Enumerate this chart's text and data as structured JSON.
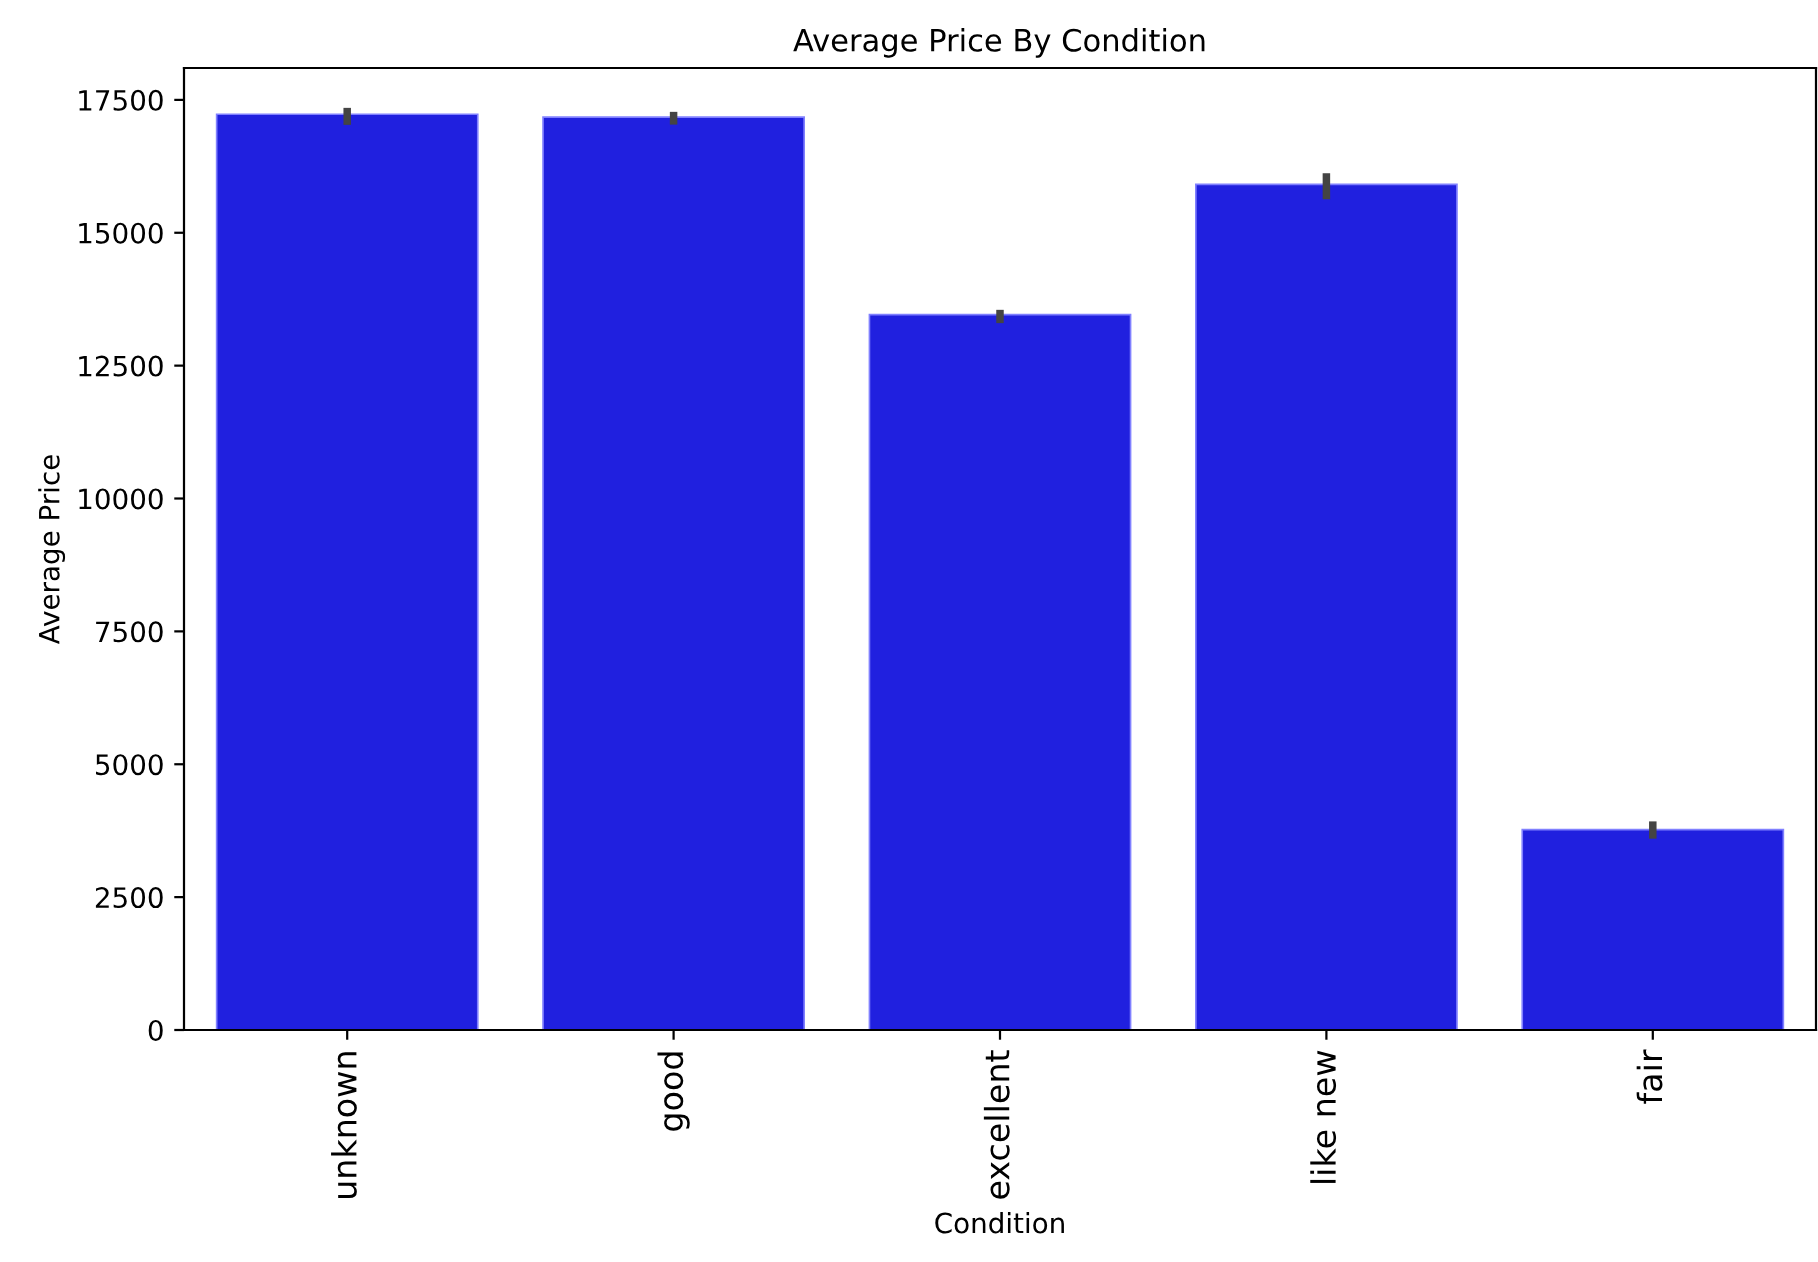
{
  "chart_data": {
    "type": "bar",
    "title": "Average Price By Condition",
    "xlabel": "Condition",
    "ylabel": "Average Price",
    "categories": [
      "unknown",
      "good",
      "excellent",
      "like new",
      "fair"
    ],
    "values": [
      17230,
      17175,
      13460,
      15910,
      3770
    ],
    "errors": [
      [
        17030,
        17350
      ],
      [
        17035,
        17275
      ],
      [
        13300,
        13550
      ],
      [
        15630,
        16120
      ],
      [
        3600,
        3925
      ]
    ],
    "color": "#2020df",
    "ylim": [
      0,
      18100
    ],
    "yticks": [
      0,
      2500,
      5000,
      7500,
      10000,
      12500,
      15000,
      17500
    ],
    "grid": false
  }
}
